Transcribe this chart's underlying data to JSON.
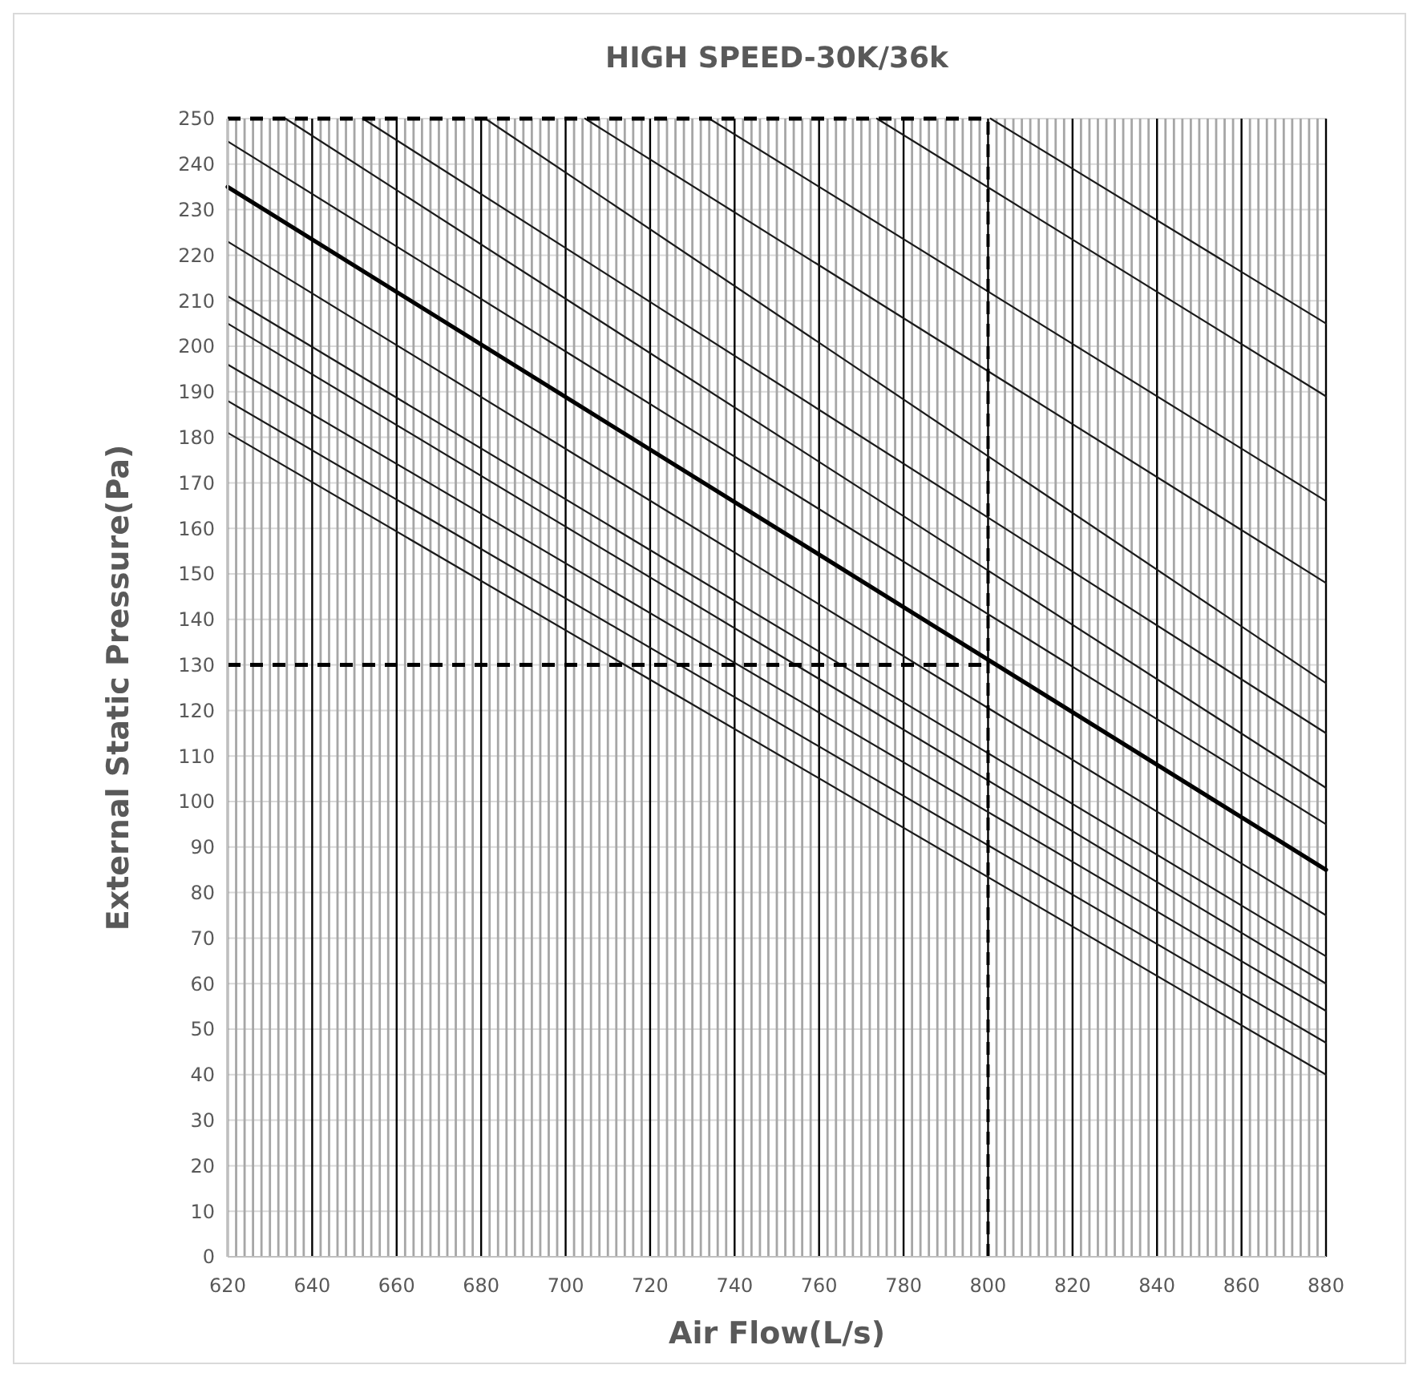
{
  "chart_data": {
    "type": "line",
    "title": "HIGH SPEED-30K/36k",
    "xlabel": "Air Flow(L/s)",
    "ylabel": "External Static Pressure(Pa)",
    "xlim": [
      620,
      880
    ],
    "ylim": [
      0,
      250
    ],
    "xticks": [
      620,
      640,
      660,
      680,
      700,
      720,
      740,
      760,
      780,
      800,
      820,
      840,
      860,
      880
    ],
    "yticks": [
      0,
      10,
      20,
      30,
      40,
      50,
      60,
      70,
      80,
      90,
      100,
      110,
      120,
      130,
      140,
      150,
      160,
      170,
      180,
      190,
      200,
      210,
      220,
      230,
      240,
      250
    ],
    "grid": true,
    "marker": "none",
    "line_style": "solid",
    "series": [
      {
        "color": "#1a1a1a",
        "x": [
          800.6,
          880
        ],
        "values": [
          250,
          205
        ]
      },
      {
        "color": "#1a1a1a",
        "x": [
          773.7,
          880
        ],
        "values": [
          250,
          189
        ]
      },
      {
        "color": "#1a1a1a",
        "x": [
          734,
          880
        ],
        "values": [
          250,
          166
        ]
      },
      {
        "color": "#1a1a1a",
        "x": [
          704.6,
          880
        ],
        "values": [
          250,
          148
        ]
      },
      {
        "color": "#1a1a1a",
        "x": [
          681,
          880
        ],
        "values": [
          250,
          126
        ]
      },
      {
        "color": "#1a1a1a",
        "x": [
          652,
          880
        ],
        "values": [
          250,
          115
        ]
      },
      {
        "color": "#1a1a1a",
        "x": [
          633.7,
          880
        ],
        "values": [
          250,
          103
        ]
      },
      {
        "color": "#1a1a1a",
        "x": [
          620,
          880
        ],
        "values": [
          245,
          95
        ]
      },
      {
        "color": "#000000",
        "x": [
          620,
          880
        ],
        "values": [
          235,
          85
        ]
      },
      {
        "color": "#1a1a1a",
        "x": [
          620,
          880
        ],
        "values": [
          223,
          75
        ]
      },
      {
        "color": "#1a1a1a",
        "x": [
          620,
          880
        ],
        "values": [
          211,
          66
        ]
      },
      {
        "color": "#1a1a1a",
        "x": [
          620,
          880
        ],
        "values": [
          205,
          60
        ]
      },
      {
        "color": "#1a1a1a",
        "x": [
          620,
          880
        ],
        "values": [
          196,
          54
        ]
      },
      {
        "color": "#1a1a1a",
        "x": [
          620,
          880
        ],
        "values": [
          188,
          47
        ]
      },
      {
        "color": "#1a1a1a",
        "x": [
          620,
          880
        ],
        "values": [
          181,
          40
        ]
      }
    ],
    "ref_lines": [
      {
        "axis": "y",
        "value": 250,
        "color": "#000000",
        "line_style": "dashed"
      },
      {
        "axis": "y",
        "value": 130,
        "color": "#000000",
        "line_style": "dashed"
      },
      {
        "axis": "x",
        "value": 800,
        "color": "#000000",
        "line_style": "dashed"
      }
    ]
  }
}
